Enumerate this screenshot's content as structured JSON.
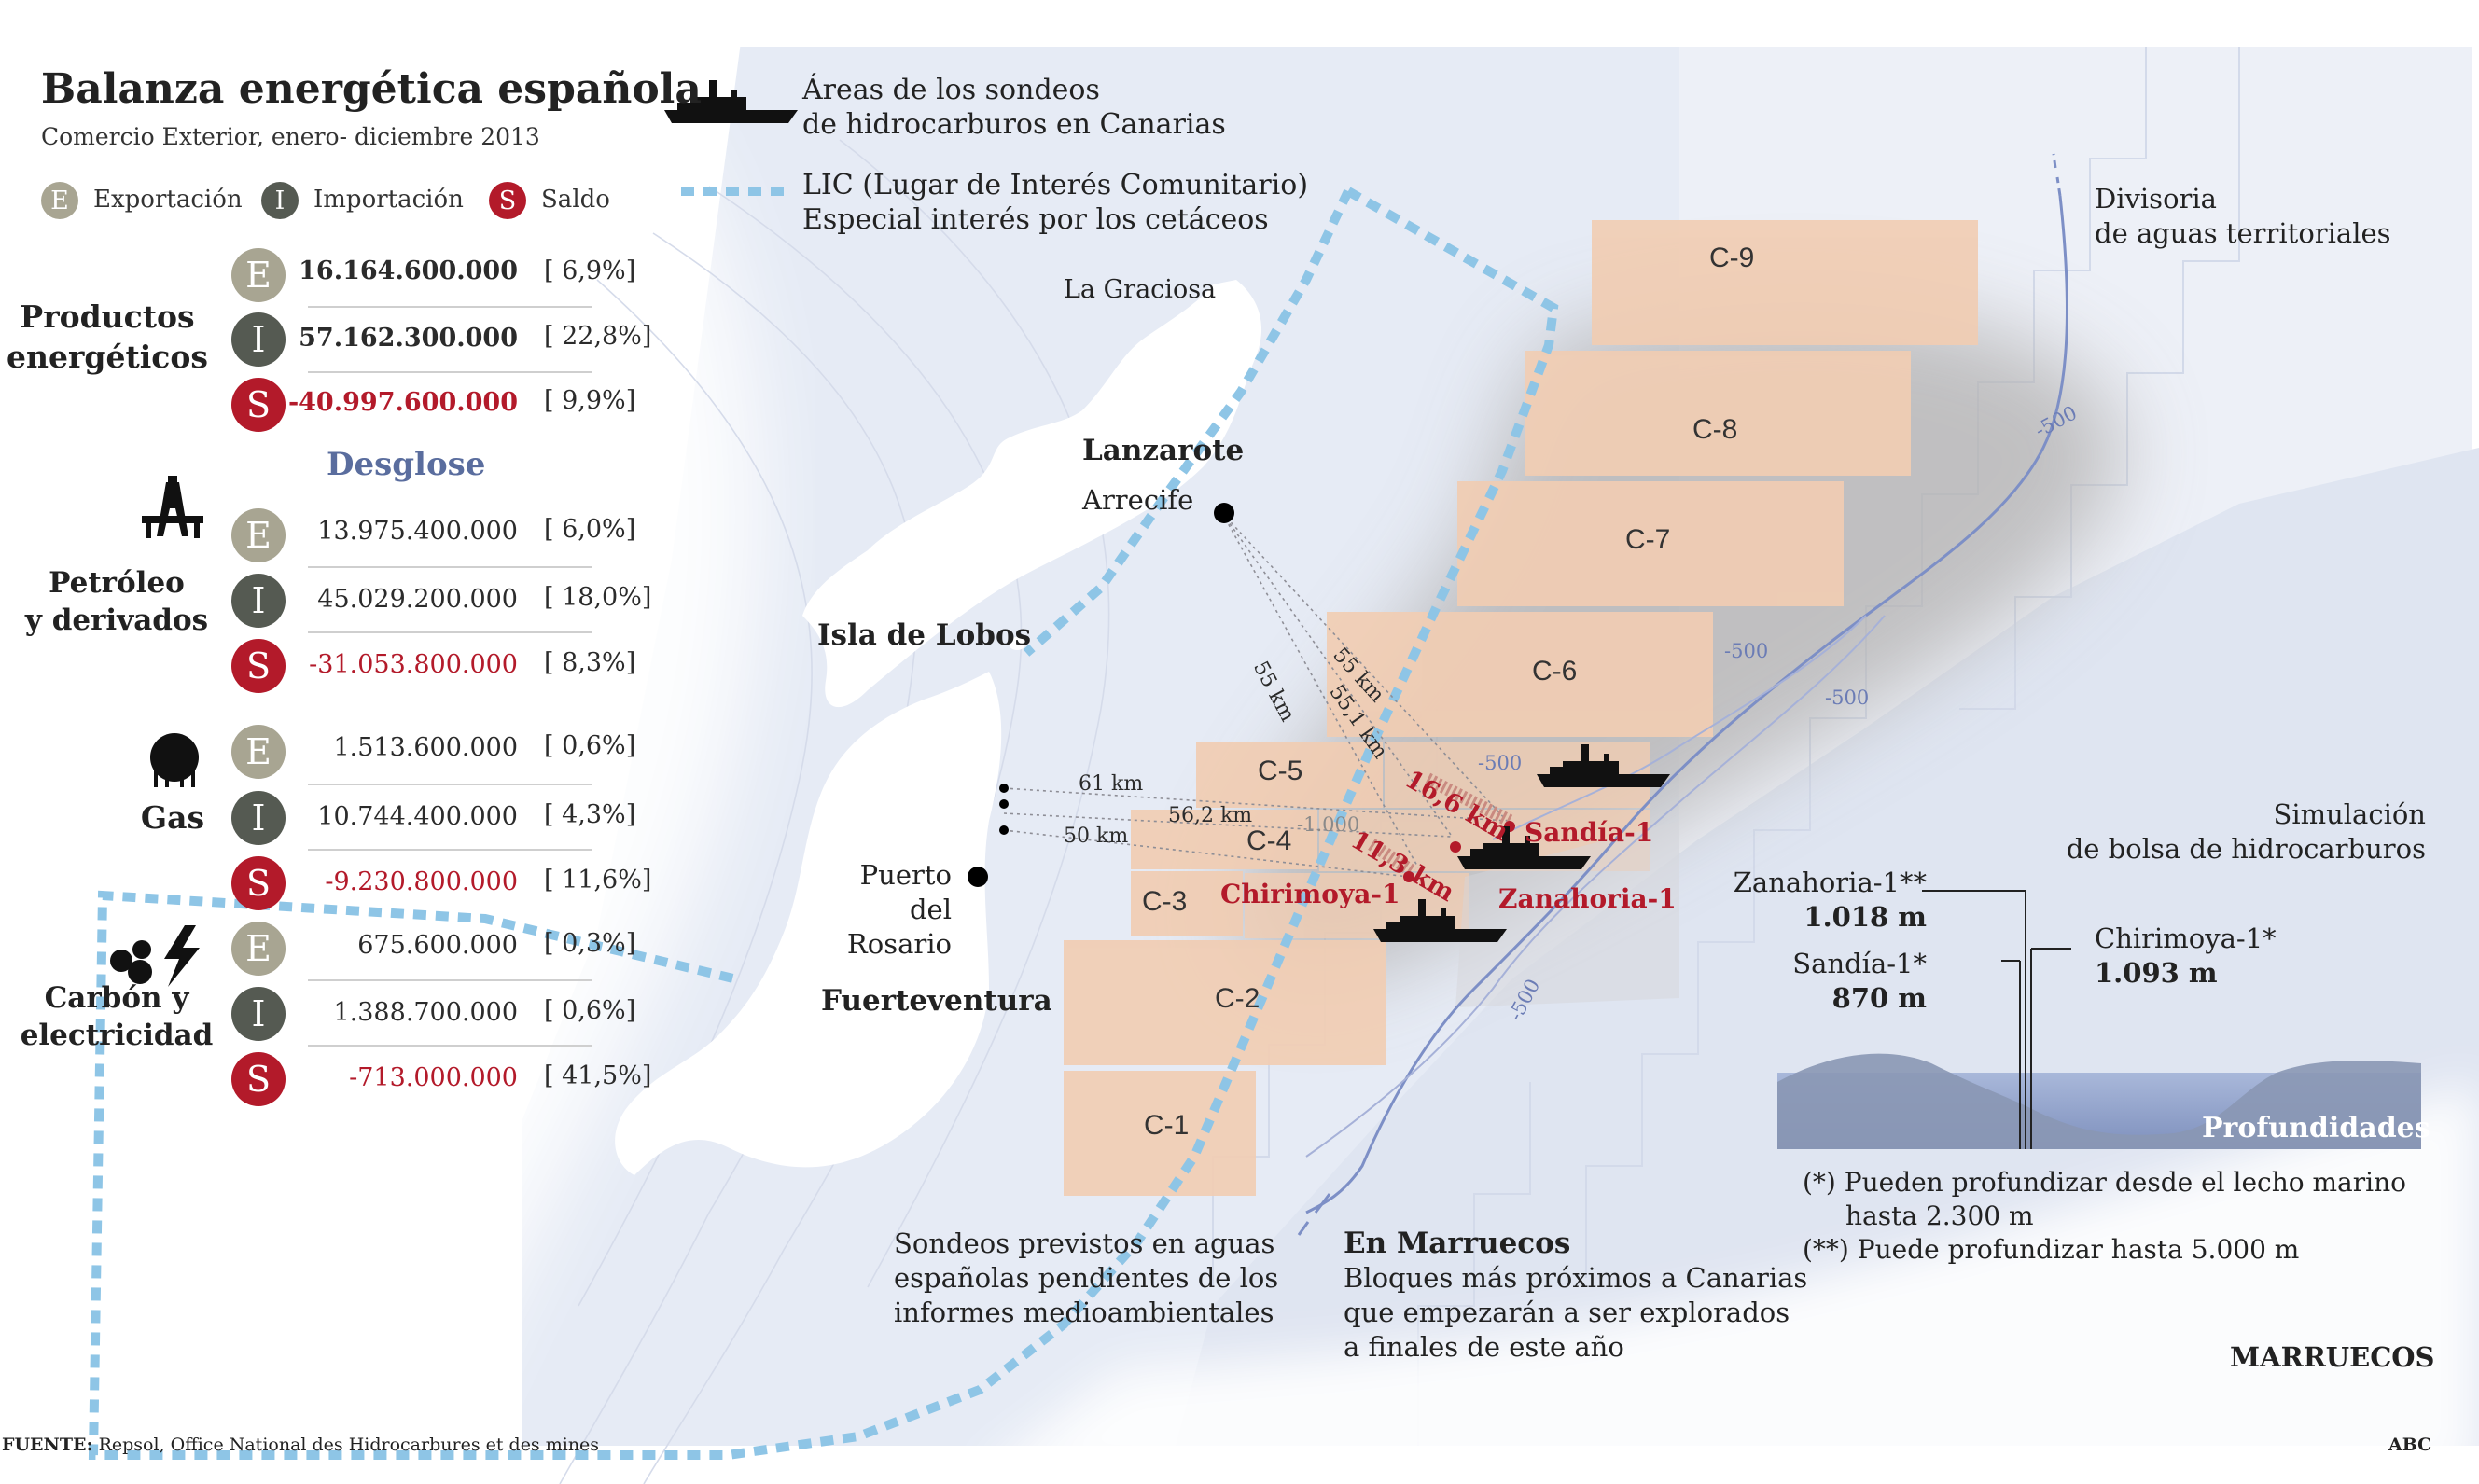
{
  "header": {
    "title": "Balanza energética española",
    "subtitle": "Comercio Exterior, enero- diciembre 2013"
  },
  "legend_badges": {
    "e_letter": "E",
    "e_label": "Exportación",
    "i_letter": "I",
    "i_label": "Importación",
    "s_letter": "S",
    "s_label": "Saldo"
  },
  "balance": {
    "energeticos": {
      "label_line1": "Productos",
      "label_line2": "energéticos",
      "e_value": "16.164.600.000",
      "e_pct": "[ 6,9%]",
      "i_value": "57.162.300.000",
      "i_pct": "[ 22,8%]",
      "s_value": "-40.997.600.000",
      "s_pct": "[ 9,9%]"
    },
    "desglose": "Desglose",
    "petroleo": {
      "label_line1": "Petróleo",
      "label_line2": "y derivados",
      "e_value": "13.975.400.000",
      "e_pct": "[ 6,0%]",
      "i_value": "45.029.200.000",
      "i_pct": "[ 18,0%]",
      "s_value": "-31.053.800.000",
      "s_pct": "[ 8,3%]"
    },
    "gas": {
      "label": "Gas",
      "e_value": "1.513.600.000",
      "e_pct": "[ 0,6%]",
      "i_value": "10.744.400.000",
      "i_pct": "[ 4,3%]",
      "s_value": "-9.230.800.000",
      "s_pct": "[ 11,6%]"
    },
    "carbon": {
      "label_line1": "Carbón y",
      "label_line2": "electricidad",
      "e_value": "675.600.000",
      "e_pct": "[ 0,3%]",
      "i_value": "1.388.700.000",
      "i_pct": "[ 0,6%]",
      "s_value": "-713.000.000",
      "s_pct": "[ 41,5%]"
    }
  },
  "map_legend": {
    "areas_line1": "Áreas de los sondeos",
    "areas_line2": "de hidrocarburos en Canarias",
    "lic_line1": "LIC (Lugar de Interés Comunitario)",
    "lic_line2": "Especial interés por los cetáceos"
  },
  "places": {
    "la_graciosa": "La Graciosa",
    "lanzarote": "Lanzarote",
    "arrecife": "Arrecife",
    "isla_lobos": "Isla de Lobos",
    "puerto_line1": "Puerto",
    "puerto_line2": "del Rosario",
    "fuerteventura": "Fuerteventura",
    "marruecos": "MARRUECOS",
    "divisoria_line1": "Divisoria",
    "divisoria_line2": "de aguas territoriales"
  },
  "blocks": [
    "C-9",
    "C-8",
    "C-7",
    "C-6",
    "C-5",
    "C-4",
    "C-3",
    "C-2",
    "C-1"
  ],
  "wells": {
    "sandia": "Sandía-1",
    "zanahoria": "Zanahoria-1",
    "chirimoya": "Chirimoya-1"
  },
  "distances": {
    "d55a": "55 km",
    "d55b": "55 km",
    "d551": "55,1 km",
    "d61": "61 km",
    "d562": "56,2 km",
    "d50": "50 km",
    "d166": "16,6 km",
    "d113": "11,3 km"
  },
  "depth_contours": {
    "c500_a": "-500",
    "c500_b": "-500",
    "c500_c": "-500",
    "c500_d": "-500",
    "c500_e": "-500",
    "c1000": "-1.000"
  },
  "sim": {
    "line1": "Simulación",
    "line2": "de bolsa de hidrocarburos",
    "zanahoria_name": "Zanahoria-1**",
    "zanahoria_depth": "1.018 m",
    "sandia_name": "Sandía-1*",
    "sandia_depth": "870 m",
    "chirimoya_name": "Chirimoya-1*",
    "chirimoya_depth": "1.093 m",
    "profundidades": "Profundidades",
    "note1_line1": "(*) Pueden profundizar desde el lecho marino",
    "note1_line2": "hasta 2.300 m",
    "note2": "(**) Puede profundizar hasta 5.000 m"
  },
  "captions": {
    "sondeos_line1": "Sondeos previstos en aguas",
    "sondeos_line2": "españolas pendientes de los",
    "sondeos_line3": "informes medioambientales",
    "marruecos_title": "En Marruecos",
    "marruecos_line1": "Bloques más próximos a Canarias",
    "marruecos_line2": "que empezarán a ser explorados",
    "marruecos_line3": "a finales de este año"
  },
  "footer": {
    "source_label": "FUENTE:",
    "source_text": "Repsol, Office National des Hidrocarbures et des mines",
    "brand": "ABC"
  },
  "colors": {
    "export": "#a8a592",
    "import": "#555a52",
    "saldo": "#b31a2a",
    "block_fill": "#f1cdb3",
    "lic_line": "#8ec5e6",
    "contour": "#8090c8"
  }
}
